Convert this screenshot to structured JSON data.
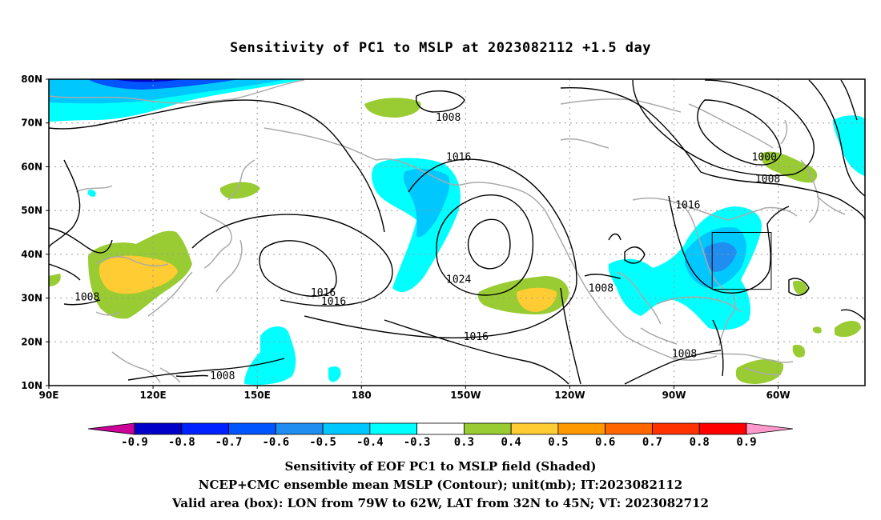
{
  "title": "Sensitivity of PC1 to MSLP at 2023082112 +1.5 day",
  "captions": [
    "Sensitivity of EOF PC1 to MSLP field (Shaded)",
    "NCEP+CMC ensemble mean MSLP (Contour); unit(mb); IT:2023082112",
    "Valid area (box): LON from 79W to 62W, LAT from 32N to 45N; VT: 2023082712"
  ],
  "map": {
    "lon_range": [
      90,
      325
    ],
    "lat_range": [
      10,
      80
    ],
    "lon_ticks": [
      {
        "lon": 90,
        "label": "90E"
      },
      {
        "lon": 120,
        "label": "120E"
      },
      {
        "lon": 150,
        "label": "150E"
      },
      {
        "lon": 180,
        "label": "180"
      },
      {
        "lon": 210,
        "label": "150W"
      },
      {
        "lon": 240,
        "label": "120W"
      },
      {
        "lon": 270,
        "label": "90W"
      },
      {
        "lon": 300,
        "label": "60W"
      }
    ],
    "lat_ticks": [
      {
        "lat": 10,
        "label": "10N"
      },
      {
        "lat": 20,
        "label": "20N"
      },
      {
        "lat": 30,
        "label": "30N"
      },
      {
        "lat": 40,
        "label": "40N"
      },
      {
        "lat": 50,
        "label": "50N"
      },
      {
        "lat": 60,
        "label": "60N"
      },
      {
        "lat": 70,
        "label": "70N"
      },
      {
        "lat": 80,
        "label": "80N"
      }
    ],
    "valid_box": {
      "lon": [
        281,
        298
      ],
      "lat": [
        32,
        45
      ]
    },
    "contour_labels": [
      {
        "text": "1008",
        "lon": 205,
        "lat": 71
      },
      {
        "text": "1016",
        "lon": 208,
        "lat": 62
      },
      {
        "text": "1000",
        "lon": 296,
        "lat": 62
      },
      {
        "text": "1008",
        "lon": 297,
        "lat": 57
      },
      {
        "text": "1016",
        "lon": 274,
        "lat": 51
      },
      {
        "text": "1024",
        "lon": 208,
        "lat": 34
      },
      {
        "text": "1008",
        "lon": 249,
        "lat": 32
      },
      {
        "text": "1016",
        "lon": 169,
        "lat": 31
      },
      {
        "text": "1016",
        "lon": 172,
        "lat": 29
      },
      {
        "text": "1016",
        "lon": 213,
        "lat": 21
      },
      {
        "text": "1008",
        "lon": 101,
        "lat": 30
      },
      {
        "text": "1008",
        "lon": 140,
        "lat": 12
      },
      {
        "text": "1008",
        "lon": 273,
        "lat": 17
      }
    ]
  },
  "colorbar": {
    "labels": [
      "-0.9",
      "-0.8",
      "-0.7",
      "-0.6",
      "-0.5",
      "-0.4",
      "-0.3",
      "0.3",
      "0.4",
      "0.5",
      "0.6",
      "0.7",
      "0.8",
      "0.9"
    ],
    "colors": [
      "#0000c8",
      "#0022ff",
      "#0055ff",
      "#1f8ef0",
      "#00c8ff",
      "#00ffff",
      "#ffffff",
      "#99cc33",
      "#ffcc33",
      "#ff9900",
      "#ff6600",
      "#ff3300",
      "#ff0000"
    ],
    "low_extend_color": "#cc0099",
    "high_extend_color": "#ff99cc"
  }
}
